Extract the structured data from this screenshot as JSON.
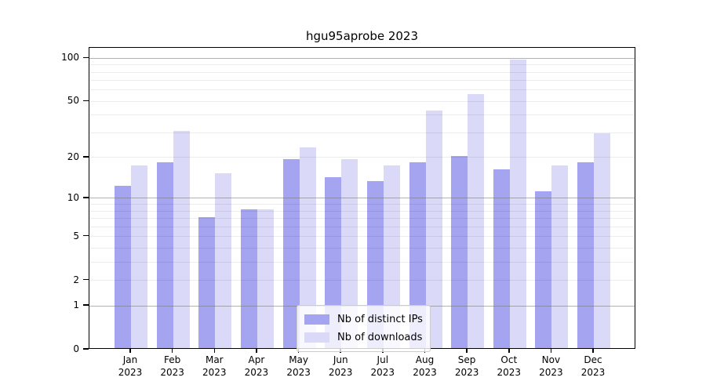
{
  "chart_data": {
    "type": "bar",
    "title": "hgu95aprobe 2023",
    "year_label": "2023",
    "categories": [
      "Jan",
      "Feb",
      "Mar",
      "Apr",
      "May",
      "Jun",
      "Jul",
      "Aug",
      "Sep",
      "Oct",
      "Nov",
      "Dec"
    ],
    "series": [
      {
        "key": "distinct-ips",
        "name": "Nb of distinct IPs",
        "color": "#a4a4f1",
        "values": [
          12,
          18,
          7,
          8,
          19,
          14,
          13,
          18,
          20,
          16,
          11,
          18
        ]
      },
      {
        "key": "downloads",
        "name": "Nb of downloads",
        "color": "#dadaf8",
        "values": [
          17,
          30,
          15,
          8,
          23,
          19,
          17,
          42,
          55,
          95,
          17,
          29
        ]
      }
    ],
    "xlabel": "",
    "ylabel": "",
    "yscale": "log1p",
    "yticks": [
      0,
      1,
      2,
      5,
      10,
      20,
      50,
      100
    ],
    "major_gridlines": [
      1,
      10,
      100
    ],
    "minor_gridlines": [
      2,
      3,
      4,
      5,
      6,
      7,
      8,
      9,
      20,
      30,
      40,
      50,
      60,
      70,
      80,
      90
    ],
    "grid": "on",
    "legend_position": "lower-center-inside",
    "background_color": "#ffffff",
    "axis_color": "#000000"
  }
}
